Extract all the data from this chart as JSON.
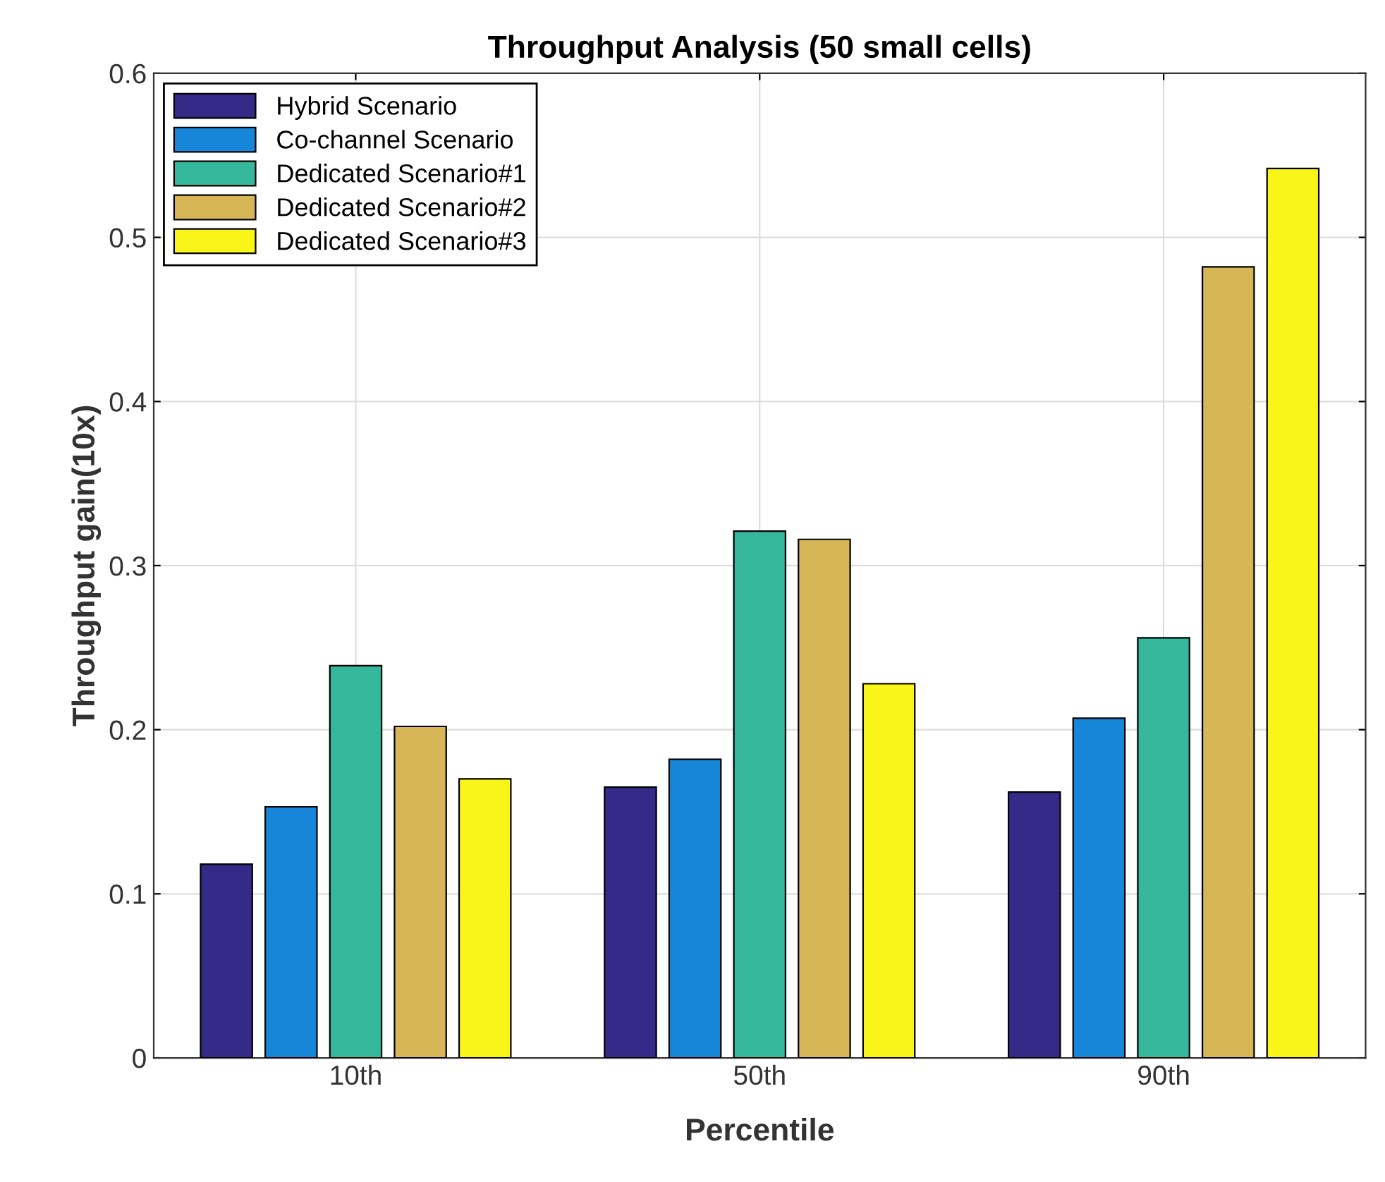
{
  "chart_data": {
    "type": "bar",
    "title": "Throughput Analysis (50 small cells)",
    "xlabel": "Percentile",
    "ylabel": "Throughput gain(10x)",
    "categories": [
      "10th",
      "50th",
      "90th"
    ],
    "series": [
      {
        "name": "Hybrid Scenario",
        "color": "#352a87",
        "values": [
          0.118,
          0.165,
          0.162
        ]
      },
      {
        "name": "Co-channel Scenario",
        "color": "#1786d8",
        "values": [
          0.153,
          0.182,
          0.207
        ]
      },
      {
        "name": "Dedicated Scenario#1",
        "color": "#35b79b",
        "values": [
          0.239,
          0.321,
          0.256
        ]
      },
      {
        "name": "Dedicated Scenario#2",
        "color": "#d6b656",
        "values": [
          0.202,
          0.316,
          0.482
        ]
      },
      {
        "name": "Dedicated Scenario#3",
        "color": "#f9f518",
        "values": [
          0.17,
          0.228,
          0.542
        ]
      }
    ],
    "ylim": [
      0,
      0.6
    ],
    "yticks": [
      0,
      0.1,
      0.2,
      0.3,
      0.4,
      0.5,
      0.6
    ],
    "grid": true,
    "legend": "top left"
  }
}
